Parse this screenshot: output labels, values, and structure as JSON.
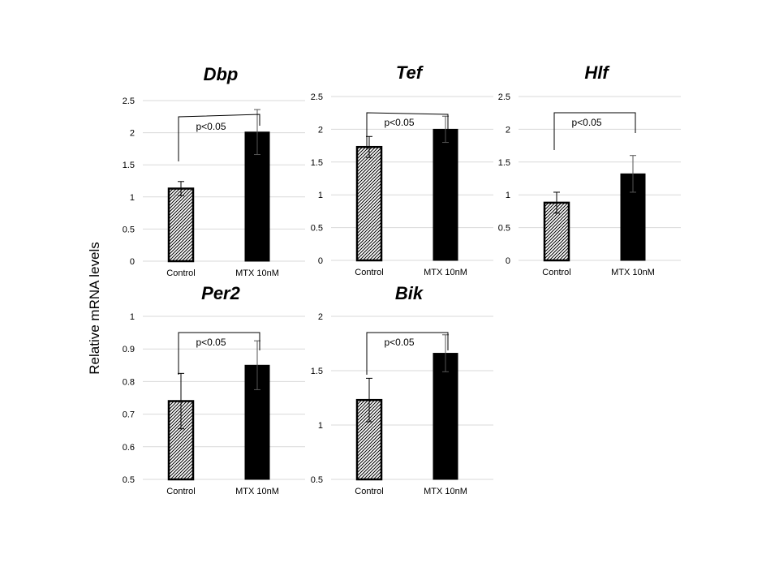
{
  "figure": {
    "ylabel": "Relative mRNA levels"
  },
  "chart_data": [
    {
      "type": "bar",
      "title": "Dbp",
      "categories": [
        "Control",
        "MTX 10nM"
      ],
      "values": [
        1.13,
        2.01
      ],
      "errors": [
        0.11,
        0.35
      ],
      "ylim": [
        0,
        2.5
      ],
      "ticks": [
        "0",
        "0.5",
        "1",
        "1.5",
        "2",
        "2.5"
      ],
      "grid": true,
      "annotation": "p<0.05"
    },
    {
      "type": "bar",
      "title": "Tef",
      "categories": [
        "Control",
        "MTX 10nM"
      ],
      "values": [
        1.73,
        2.0
      ],
      "errors": [
        0.16,
        0.2
      ],
      "ylim": [
        0,
        2.5
      ],
      "ticks": [
        "0",
        "0.5",
        "1",
        "1.5",
        "2",
        "2.5"
      ],
      "grid": true,
      "annotation": "p<0.05"
    },
    {
      "type": "bar",
      "title": "Hlf",
      "categories": [
        "Control",
        "MTX 10nM"
      ],
      "values": [
        0.88,
        1.32
      ],
      "errors": [
        0.16,
        0.28
      ],
      "ylim": [
        0,
        2.5
      ],
      "ticks": [
        "0",
        "0.5",
        "1",
        "1.5",
        "2",
        "2.5"
      ],
      "grid": true,
      "annotation": "p<0.05"
    },
    {
      "type": "bar",
      "title": "Per2",
      "categories": [
        "Control",
        "MTX 10nM"
      ],
      "values": [
        0.74,
        0.85
      ],
      "errors": [
        0.085,
        0.075
      ],
      "ylim": [
        0.5,
        1
      ],
      "ticks": [
        "0.5",
        "0.6",
        "0.7",
        "0.8",
        "0.9",
        "1"
      ],
      "grid": true,
      "annotation": "p<0.05"
    },
    {
      "type": "bar",
      "title": "Bik",
      "categories": [
        "Control",
        "MTX 10nM"
      ],
      "values": [
        1.23,
        1.66
      ],
      "errors": [
        0.2,
        0.17
      ],
      "ylim": [
        0.5,
        2
      ],
      "ticks": [
        "0.5",
        "1",
        "1.5",
        "2"
      ],
      "grid": true,
      "annotation": "p<0.05"
    }
  ]
}
